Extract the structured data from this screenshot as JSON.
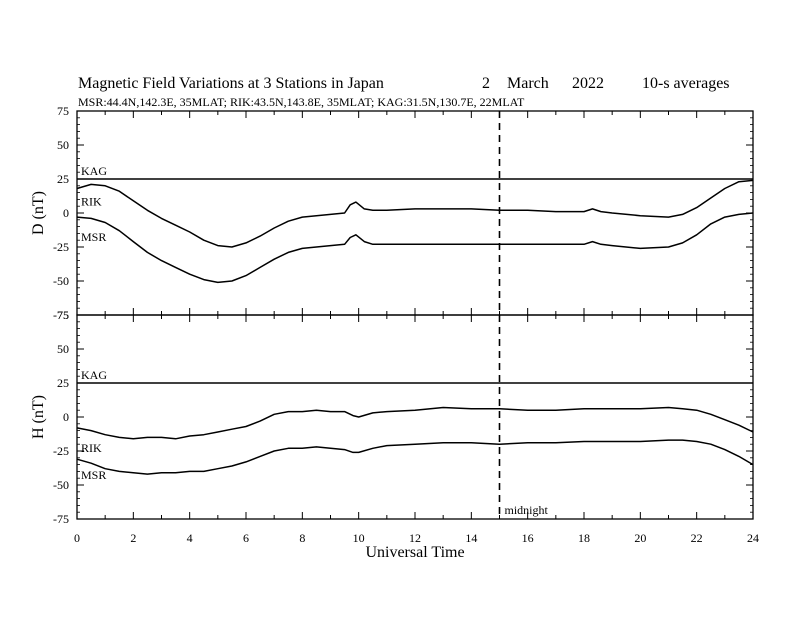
{
  "header": {
    "title": "Magnetic Field Variations at 3 Stations in Japan",
    "date_day": "2",
    "date_month": "March",
    "date_year": "2022",
    "averaging": "10-s averages",
    "subtitle": "MSR:44.4N,142.3E, 35MLAT;  RIK:43.5N,143.8E, 35MLAT;  KAG:31.5N,130.7E, 22MLAT"
  },
  "chart_data": [
    {
      "type": "line",
      "ylabel": "D (nT)",
      "xlim": [
        0,
        24
      ],
      "ylim": [
        -75,
        75
      ],
      "yticks": [
        75,
        50,
        25,
        0,
        -25,
        -50,
        -75
      ],
      "grid": false,
      "series": [
        {
          "name": "KAG",
          "x": [
            0,
            24
          ],
          "values": [
            25,
            25
          ]
        },
        {
          "name": "RIK",
          "x": [
            0,
            0.5,
            1,
            1.5,
            2,
            2.5,
            3,
            3.5,
            4,
            4.5,
            5,
            5.5,
            6,
            6.5,
            7,
            7.5,
            8,
            8.5,
            9,
            9.5,
            9.7,
            9.9,
            10.2,
            10.5,
            11,
            12,
            13,
            14,
            15,
            16,
            17,
            18,
            18.3,
            18.6,
            19,
            20,
            21,
            21.5,
            22,
            22.5,
            23,
            23.5,
            24
          ],
          "values": [
            18,
            21,
            20,
            16,
            9,
            2,
            -4,
            -9,
            -14,
            -20,
            -24,
            -25,
            -22,
            -17,
            -11,
            -6,
            -3,
            -2,
            -1,
            0,
            6,
            8,
            3,
            2,
            2,
            3,
            3,
            3,
            2,
            2,
            1,
            1,
            3,
            1,
            0,
            -2,
            -3,
            -1,
            4,
            11,
            18,
            23,
            24
          ]
        },
        {
          "name": "MSR",
          "x": [
            0,
            0.5,
            1,
            1.5,
            2,
            2.5,
            3,
            3.5,
            4,
            4.5,
            5,
            5.5,
            6,
            6.5,
            7,
            7.5,
            8,
            8.5,
            9,
            9.5,
            9.7,
            9.9,
            10.2,
            10.5,
            11,
            12,
            13,
            14,
            15,
            16,
            17,
            18,
            18.3,
            18.6,
            19,
            20,
            21,
            21.5,
            22,
            22.5,
            23,
            23.5,
            24
          ],
          "values": [
            -3,
            -4,
            -7,
            -13,
            -21,
            -29,
            -35,
            -40,
            -45,
            -49,
            -51,
            -50,
            -46,
            -40,
            -34,
            -29,
            -26,
            -25,
            -24,
            -23,
            -18,
            -16,
            -21,
            -23,
            -23,
            -23,
            -23,
            -23,
            -23,
            -23,
            -23,
            -23,
            -21,
            -23,
            -24,
            -26,
            -25,
            -22,
            -16,
            -8,
            -3,
            -1,
            0
          ]
        }
      ]
    },
    {
      "type": "line",
      "xlabel": "Universal Time",
      "ylabel": "H (nT)",
      "xlim": [
        0,
        24
      ],
      "ylim": [
        -75,
        75
      ],
      "xticks": [
        0,
        2,
        4,
        6,
        8,
        10,
        12,
        14,
        16,
        18,
        20,
        22,
        24
      ],
      "yticks": [
        75,
        50,
        25,
        0,
        -25,
        -50,
        -75
      ],
      "grid": false,
      "series": [
        {
          "name": "KAG",
          "x": [
            0,
            24
          ],
          "values": [
            25,
            25
          ]
        },
        {
          "name": "RIK",
          "x": [
            0,
            0.5,
            1,
            1.5,
            2,
            2.5,
            3,
            3.5,
            4,
            4.5,
            5,
            5.5,
            6,
            6.5,
            7,
            7.5,
            8,
            8.5,
            9,
            9.5,
            9.8,
            10,
            10.5,
            11,
            12,
            13,
            14,
            15,
            16,
            17,
            18,
            19,
            20,
            21,
            21.5,
            22,
            22.5,
            23,
            23.5,
            24
          ],
          "values": [
            -8,
            -10,
            -13,
            -15,
            -16,
            -15,
            -15,
            -16,
            -14,
            -13,
            -11,
            -9,
            -7,
            -3,
            2,
            4,
            4,
            5,
            4,
            4,
            1,
            0,
            3,
            4,
            5,
            7,
            6,
            6,
            5,
            5,
            6,
            6,
            6,
            7,
            6,
            5,
            2,
            -2,
            -6,
            -11
          ]
        },
        {
          "name": "MSR",
          "x": [
            0,
            0.5,
            1,
            1.5,
            2,
            2.5,
            3,
            3.5,
            4,
            4.5,
            5,
            5.5,
            6,
            6.5,
            7,
            7.5,
            8,
            8.5,
            9,
            9.5,
            9.8,
            10,
            10.5,
            11,
            12,
            13,
            14,
            15,
            16,
            17,
            18,
            19,
            20,
            21,
            21.5,
            22,
            22.5,
            23,
            23.5,
            24
          ],
          "values": [
            -31,
            -34,
            -38,
            -40,
            -41,
            -42,
            -41,
            -41,
            -40,
            -40,
            -38,
            -36,
            -33,
            -29,
            -25,
            -23,
            -23,
            -22,
            -23,
            -24,
            -26,
            -26,
            -23,
            -21,
            -20,
            -19,
            -19,
            -20,
            -19,
            -19,
            -18,
            -18,
            -18,
            -17,
            -17,
            -18,
            -20,
            -24,
            -29,
            -35
          ]
        }
      ]
    }
  ],
  "annotations": {
    "midnight_label": "midnight",
    "midnight_ut": 15,
    "station_labels": [
      "KAG",
      "RIK",
      "MSR"
    ]
  }
}
